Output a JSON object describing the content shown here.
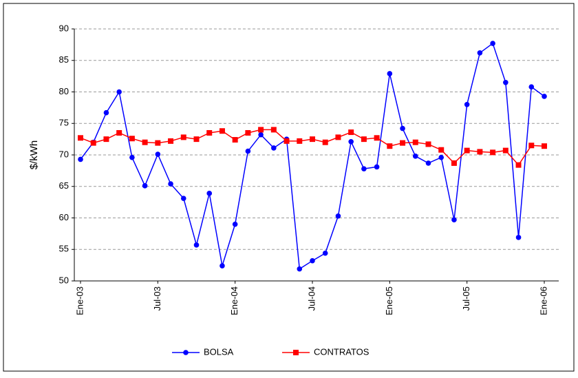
{
  "chart_data": {
    "type": "line",
    "categories": [
      "Ene-03",
      null,
      null,
      null,
      null,
      null,
      "Jul-03",
      null,
      null,
      null,
      null,
      null,
      "Ene-04",
      null,
      null,
      null,
      null,
      null,
      "Jul-04",
      null,
      null,
      null,
      null,
      null,
      "Ene-05",
      null,
      null,
      null,
      null,
      null,
      "Jul-05",
      null,
      null,
      null,
      null,
      null,
      "Ene-06"
    ],
    "ylabel": "$/kWh",
    "ylim": [
      50,
      90
    ],
    "yticks": [
      50,
      55,
      60,
      65,
      70,
      75,
      80,
      85,
      90
    ],
    "grid": true,
    "legend": "bottom",
    "series": [
      {
        "name": "BOLSA",
        "color": "#0000ff",
        "marker": "circle",
        "values": [
          69.3,
          72.0,
          76.7,
          80.0,
          69.6,
          65.1,
          70.1,
          65.4,
          63.1,
          55.7,
          63.9,
          52.4,
          59.0,
          70.6,
          73.2,
          71.1,
          72.5,
          51.9,
          53.2,
          54.4,
          60.3,
          72.1,
          67.8,
          68.1,
          82.9,
          74.2,
          69.8,
          68.7,
          69.6,
          59.7,
          78.0,
          86.2,
          87.7,
          81.5,
          56.9,
          80.8,
          79.3
        ]
      },
      {
        "name": "CONTRATOS",
        "color": "#ff0000",
        "marker": "square",
        "values": [
          72.7,
          71.9,
          72.5,
          73.5,
          72.6,
          72.0,
          71.9,
          72.2,
          72.8,
          72.5,
          73.5,
          73.8,
          72.4,
          73.5,
          74.0,
          74.0,
          72.2,
          72.2,
          72.5,
          72.0,
          72.8,
          73.6,
          72.5,
          72.7,
          71.4,
          71.9,
          72.0,
          71.7,
          70.8,
          68.7,
          70.7,
          70.5,
          70.4,
          70.7,
          68.4,
          71.5,
          71.4
        ]
      }
    ]
  }
}
